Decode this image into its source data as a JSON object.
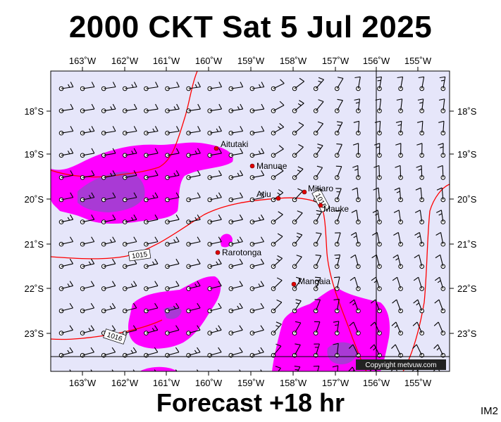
{
  "title": "2000 CKT Sat 5 Jul 2025",
  "footer": "Forecast +18 hr",
  "corner_label": "IM2",
  "copyright": "Copyright metvuw.com",
  "colors": {
    "background": "#e6e6fa",
    "rain_light": "#ff00ff",
    "rain_heavy": "#9a30d0",
    "isobar": "#ff0000",
    "place_dot": "#e00000"
  },
  "longitude_labels": [
    "163˚W",
    "162˚W",
    "161˚W",
    "160˚W",
    "159˚W",
    "158˚W",
    "157˚W",
    "156˚W",
    "155˚W"
  ],
  "latitude_labels": [
    "18˚S",
    "19˚S",
    "20˚S",
    "21˚S",
    "22˚S",
    "23˚S"
  ],
  "places": [
    {
      "name": "Aitutaki",
      "lon": -159.79,
      "lat": -18.86
    },
    {
      "name": "Manuae",
      "lon": -158.96,
      "lat": -19.26
    },
    {
      "name": "Atiu",
      "lon": -158.12,
      "lat": -20.0
    },
    {
      "name": "Mitiaro",
      "lon": -157.7,
      "lat": -19.86
    },
    {
      "name": "Mauke",
      "lon": -157.34,
      "lat": -20.16
    },
    {
      "name": "Rarotonga",
      "lon": -159.78,
      "lat": -21.23
    },
    {
      "name": "Mangaia",
      "lon": -157.9,
      "lat": -21.92
    }
  ],
  "isobar_labels": [
    "1015",
    "1015",
    "1016"
  ]
}
